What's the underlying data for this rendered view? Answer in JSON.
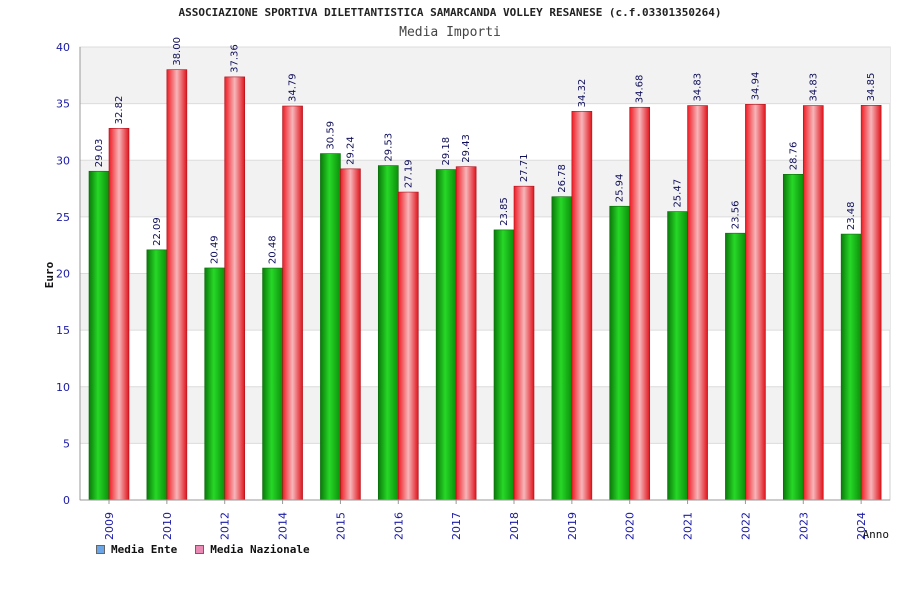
{
  "chart_data": {
    "type": "bar",
    "title": "ASSOCIAZIONE SPORTIVA DILETTANTISTICA SAMARCANDA VOLLEY RESANESE (c.f.03301350264)",
    "subtitle": "Media Importi",
    "xlabel": "Anno",
    "ylabel": "Euro",
    "ylim": [
      0,
      40
    ],
    "yticks": [
      0,
      5,
      10,
      15,
      20,
      25,
      30,
      35,
      40
    ],
    "grid": true,
    "legend_position": "bottom-left",
    "categories": [
      "2009",
      "2010",
      "2012",
      "2014",
      "2015",
      "2016",
      "2017",
      "2018",
      "2019",
      "2020",
      "2021",
      "2022",
      "2023",
      "2024"
    ],
    "series": [
      {
        "name": "Media Ente",
        "values": [
          29.03,
          22.09,
          20.49,
          20.48,
          30.59,
          29.53,
          29.18,
          23.85,
          26.78,
          25.94,
          25.47,
          23.56,
          28.76,
          23.48
        ],
        "labels": [
          "29.03",
          "22.09",
          "20.49",
          "20.48",
          "30.59",
          "29.53",
          "29.18",
          "23.85",
          "26.78",
          "25.94",
          "25.47",
          "23.56",
          "28.76",
          "23.48"
        ],
        "bar_color": "#12b012",
        "legend_color": "#6aa6e8"
      },
      {
        "name": "Media Nazionale",
        "values": [
          32.82,
          38.0,
          37.36,
          34.79,
          29.24,
          27.19,
          29.43,
          27.71,
          34.32,
          34.68,
          34.83,
          34.94,
          34.83,
          34.85
        ],
        "labels": [
          "32.82",
          "38.00",
          "37.36",
          "34.79",
          "29.24",
          "27.19",
          "29.43",
          "27.71",
          "34.32",
          "34.68",
          "34.83",
          "34.94",
          "34.83",
          "34.85"
        ],
        "bar_color": "#ee1c24",
        "legend_color": "#e88ab4"
      }
    ],
    "colors": {
      "axis_text": "#1a1aa6",
      "grid_band": "#f2f2f2"
    }
  }
}
